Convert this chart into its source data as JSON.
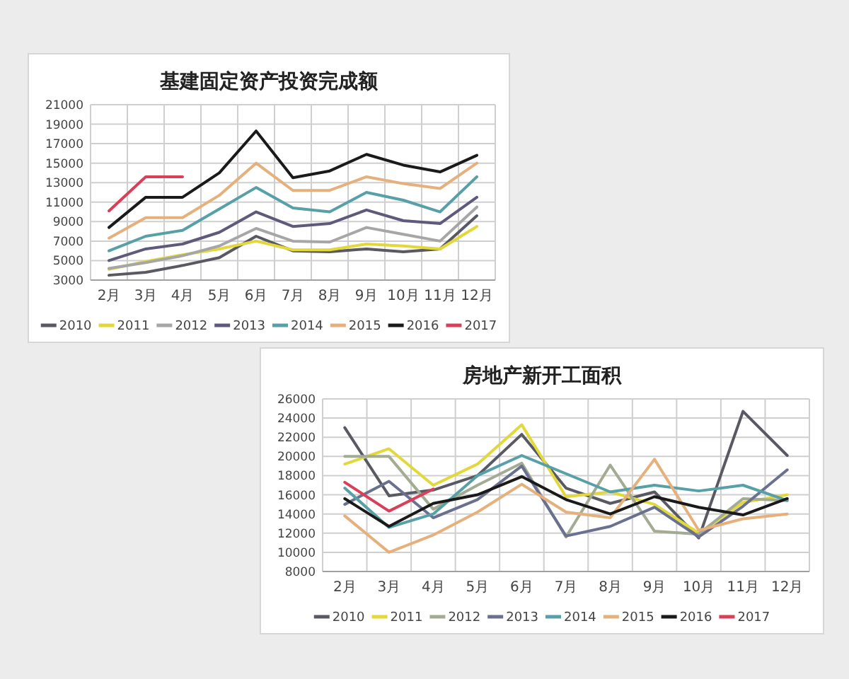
{
  "chart_data": [
    {
      "type": "line",
      "title": "基建固定资产投资完成额",
      "categories": [
        "2月",
        "3月",
        "4月",
        "5月",
        "6月",
        "7月",
        "8月",
        "9月",
        "10月",
        "11月",
        "12月"
      ],
      "ylim": [
        3000,
        21000
      ],
      "yticks": [
        3000,
        5000,
        7000,
        9000,
        11000,
        13000,
        15000,
        17000,
        19000,
        21000
      ],
      "grid": true,
      "legend": "bottom",
      "series": [
        {
          "name": "2010",
          "color": "#595963",
          "values": [
            3500,
            3800,
            4500,
            5300,
            7500,
            6000,
            5900,
            6200,
            5900,
            6200,
            9600
          ]
        },
        {
          "name": "2011",
          "color": "#e2d83a",
          "values": [
            4100,
            4900,
            5600,
            6200,
            7000,
            6100,
            6100,
            6700,
            6500,
            6200,
            8500
          ]
        },
        {
          "name": "2012",
          "color": "#a6a6a6",
          "values": [
            4200,
            4800,
            5500,
            6500,
            8300,
            7000,
            6900,
            8400,
            7700,
            7000,
            10500
          ]
        },
        {
          "name": "2013",
          "color": "#5e5a7c",
          "values": [
            5000,
            6200,
            6700,
            7900,
            10000,
            8500,
            8800,
            10200,
            9100,
            8800,
            11500
          ]
        },
        {
          "name": "2014",
          "color": "#58a0a8",
          "values": [
            6000,
            7500,
            8100,
            10300,
            12500,
            10400,
            10000,
            12000,
            11200,
            10000,
            13600
          ]
        },
        {
          "name": "2015",
          "color": "#e6b07c",
          "values": [
            7300,
            9400,
            9400,
            11700,
            15000,
            12200,
            12200,
            13600,
            12900,
            12400,
            15000
          ]
        },
        {
          "name": "2016",
          "color": "#1a1a1a",
          "values": [
            8400,
            11500,
            11500,
            14000,
            18300,
            13500,
            14200,
            15900,
            14800,
            14100,
            15800
          ]
        },
        {
          "name": "2017",
          "color": "#d8405a",
          "values": [
            10100,
            13600,
            13600,
            null,
            null,
            null,
            null,
            null,
            null,
            null,
            null
          ]
        }
      ]
    },
    {
      "type": "line",
      "title": "房地产新开工面积",
      "categories": [
        "2月",
        "3月",
        "4月",
        "5月",
        "6月",
        "7月",
        "8月",
        "9月",
        "10月",
        "11月",
        "12月"
      ],
      "ylim": [
        8000,
        26000
      ],
      "yticks": [
        8000,
        10000,
        12000,
        14000,
        16000,
        18000,
        20000,
        22000,
        24000,
        26000
      ],
      "grid": true,
      "legend": "bottom",
      "series": [
        {
          "name": "2010",
          "color": "#595963",
          "values": [
            23000,
            15900,
            16500,
            18000,
            22300,
            16700,
            15100,
            16300,
            11500,
            24700,
            20100
          ]
        },
        {
          "name": "2011",
          "color": "#e2d83a",
          "values": [
            19200,
            20800,
            17000,
            19200,
            23300,
            15800,
            16300,
            15000,
            12000,
            15200,
            16000
          ]
        },
        {
          "name": "2012",
          "color": "#a3ab92",
          "values": [
            20000,
            20000,
            14500,
            17000,
            19300,
            11600,
            19100,
            12200,
            11900,
            15600,
            15400
          ]
        },
        {
          "name": "2013",
          "color": "#6a7090",
          "values": [
            15000,
            17400,
            13600,
            15500,
            19000,
            11700,
            12700,
            14700,
            11600,
            14800,
            18600
          ]
        },
        {
          "name": "2014",
          "color": "#58a0a8",
          "values": [
            16700,
            12600,
            14000,
            18000,
            20100,
            18200,
            16300,
            17000,
            16400,
            17000,
            15400
          ]
        },
        {
          "name": "2015",
          "color": "#e6b07c",
          "values": [
            13800,
            10000,
            11800,
            14200,
            17100,
            14200,
            13600,
            19700,
            12300,
            13500,
            14000
          ]
        },
        {
          "name": "2016",
          "color": "#1a1a1a",
          "values": [
            15600,
            12700,
            15100,
            16000,
            17900,
            15500,
            14000,
            15800,
            14700,
            13900,
            15600
          ]
        },
        {
          "name": "2017",
          "color": "#d8405a",
          "values": [
            17300,
            14300,
            16600,
            null,
            null,
            null,
            null,
            null,
            null,
            null,
            null
          ]
        }
      ]
    }
  ]
}
